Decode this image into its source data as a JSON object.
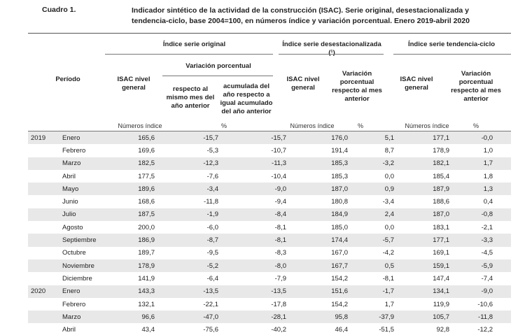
{
  "caption": {
    "label": "Cuadro 1.",
    "title": "Indicador sintético de la actividad de la construcción (ISAC). Serie original, desestacionalizada y tendencia-ciclo, base 2004=100, en números índice y variación porcentual. Enero 2019-abril 2020"
  },
  "headers": {
    "periodo": "Período",
    "group_original": "Índice serie original",
    "group_desest": "Índice serie desestacionalizada (¹)",
    "group_tendencia": "Índice serie tendencia-ciclo",
    "isac_nivel": "ISAC nivel general",
    "variacion_porcentual": "Variación porcentual",
    "respecto_mismo_mes": "respecto al mismo mes del año anterior",
    "acumulada": "acumulada del año respecto a igual acumulado del año anterior",
    "variacion_mes_anterior": "Variación porcentual respecto al mes anterior"
  },
  "units": {
    "numeros_indice": "Números índice",
    "pct": "%"
  },
  "rows": [
    {
      "year": "2019",
      "month": "Enero",
      "c1": "165,6",
      "c2": "-15,7",
      "c3": "-15,7",
      "c4": "176,0",
      "c5": "5,1",
      "c6": "177,1",
      "c7": "-0,0"
    },
    {
      "year": "",
      "month": "Febrero",
      "c1": "169,6",
      "c2": "-5,3",
      "c3": "-10,7",
      "c4": "191,4",
      "c5": "8,7",
      "c6": "178,9",
      "c7": "1,0"
    },
    {
      "year": "",
      "month": "Marzo",
      "c1": "182,5",
      "c2": "-12,3",
      "c3": "-11,3",
      "c4": "185,3",
      "c5": "-3,2",
      "c6": "182,1",
      "c7": "1,7"
    },
    {
      "year": "",
      "month": "Abril",
      "c1": "177,5",
      "c2": "-7,6",
      "c3": "-10,4",
      "c4": "185,3",
      "c5": "0,0",
      "c6": "185,4",
      "c7": "1,8"
    },
    {
      "year": "",
      "month": "Mayo",
      "c1": "189,6",
      "c2": "-3,4",
      "c3": "-9,0",
      "c4": "187,0",
      "c5": "0,9",
      "c6": "187,9",
      "c7": "1,3"
    },
    {
      "year": "",
      "month": "Junio",
      "c1": "168,6",
      "c2": "-11,8",
      "c3": "-9,4",
      "c4": "180,8",
      "c5": "-3,4",
      "c6": "188,6",
      "c7": "0,4"
    },
    {
      "year": "",
      "month": "Julio",
      "c1": "187,5",
      "c2": "-1,9",
      "c3": "-8,4",
      "c4": "184,9",
      "c5": "2,4",
      "c6": "187,0",
      "c7": "-0,8"
    },
    {
      "year": "",
      "month": "Agosto",
      "c1": "200,0",
      "c2": "-6,0",
      "c3": "-8,1",
      "c4": "185,0",
      "c5": "0,0",
      "c6": "183,1",
      "c7": "-2,1"
    },
    {
      "year": "",
      "month": "Septiembre",
      "c1": "186,9",
      "c2": "-8,7",
      "c3": "-8,1",
      "c4": "174,4",
      "c5": "-5,7",
      "c6": "177,1",
      "c7": "-3,3"
    },
    {
      "year": "",
      "month": "Octubre",
      "c1": "189,7",
      "c2": "-9,5",
      "c3": "-8,3",
      "c4": "167,0",
      "c5": "-4,2",
      "c6": "169,1",
      "c7": "-4,5"
    },
    {
      "year": "",
      "month": "Noviembre",
      "c1": "178,9",
      "c2": "-5,2",
      "c3": "-8,0",
      "c4": "167,7",
      "c5": "0,5",
      "c6": "159,1",
      "c7": "-5,9"
    },
    {
      "year": "",
      "month": "Diciembre",
      "c1": "141,9",
      "c2": "-6,4",
      "c3": "-7,9",
      "c4": "154,2",
      "c5": "-8,1",
      "c6": "147,4",
      "c7": "-7,4"
    },
    {
      "year": "2020",
      "month": "Enero",
      "c1": "143,3",
      "c2": "-13,5",
      "c3": "-13,5",
      "c4": "151,6",
      "c5": "-1,7",
      "c6": "134,1",
      "c7": "-9,0"
    },
    {
      "year": "",
      "month": "Febrero",
      "c1": "132,1",
      "c2": "-22,1",
      "c3": "-17,8",
      "c4": "154,2",
      "c5": "1,7",
      "c6": "119,9",
      "c7": "-10,6"
    },
    {
      "year": "",
      "month": "Marzo",
      "c1": "96,6",
      "c2": "-47,0",
      "c3": "-28,1",
      "c4": "95,8",
      "c5": "-37,9",
      "c6": "105,7",
      "c7": "-11,8"
    },
    {
      "year": "",
      "month": "Abril",
      "c1": "43,4",
      "c2": "-75,6",
      "c3": "-40,2",
      "c4": "46,4",
      "c5": "-51,5",
      "c6": "92,8",
      "c7": "-12,2"
    }
  ]
}
